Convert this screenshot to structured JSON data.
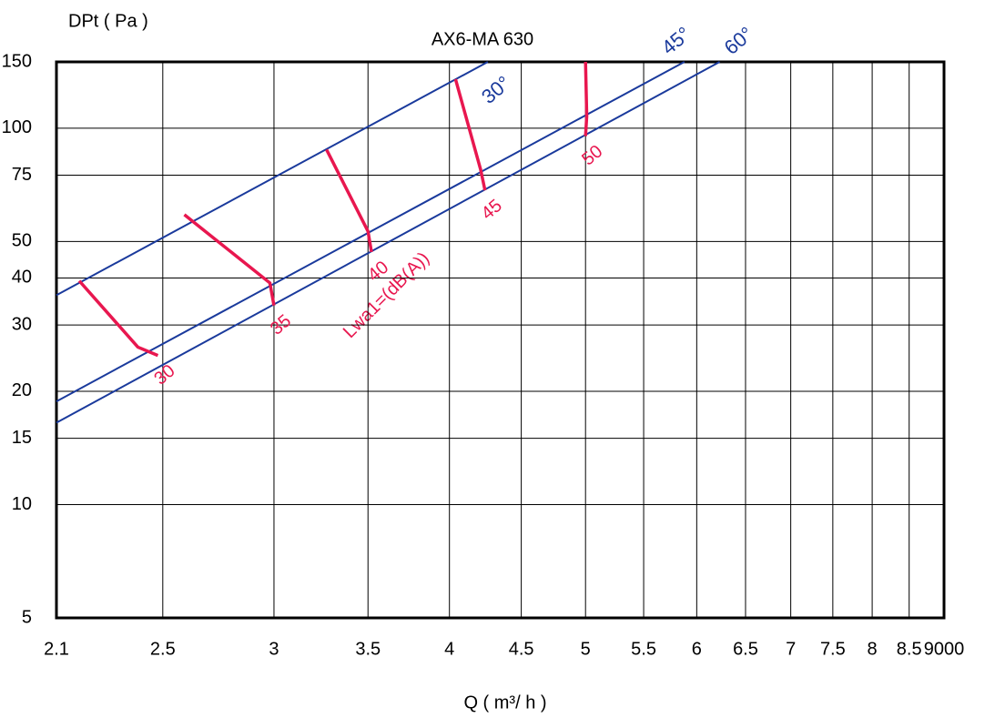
{
  "chart_data": {
    "type": "line",
    "title": "AX6-MA 630",
    "x_label": "Q ( m³/ h )",
    "y_label": "DPt ( Pa )",
    "annotation": "Lwa1=(dB(A))",
    "x_scale": "log",
    "y_scale": "log",
    "grid": true,
    "xlim": [
      2.1,
      9
    ],
    "ylim": [
      5,
      150
    ],
    "xticks": [
      2.1,
      2.5,
      3,
      3.5,
      4,
      4.5,
      5,
      5.5,
      6,
      6.5,
      7,
      7.5,
      8,
      8.5,
      {
        "value": 9,
        "label": "9000"
      }
    ],
    "yticks": [
      5,
      10,
      15,
      20,
      30,
      40,
      50,
      75,
      100,
      150
    ],
    "series": [
      {
        "name": "30°",
        "color": "#1a3a9c",
        "x": [
          2.1,
          4.26
        ],
        "values": [
          36,
          150
        ]
      },
      {
        "name": "45°",
        "color": "#1a3a9c",
        "x": [
          2.1,
          5.88
        ],
        "values": [
          18.8,
          150
        ]
      },
      {
        "name": "60°",
        "color": "#1a3a9c",
        "x": [
          2.1,
          6.23
        ],
        "values": [
          16.5,
          150
        ]
      },
      {
        "name": "30",
        "color": "#e8174f",
        "x": [
          2.18,
          2.4,
          2.48
        ],
        "values": [
          39.3,
          26.2,
          24.9
        ]
      },
      {
        "name": "35",
        "color": "#e8174f",
        "x": [
          2.59,
          2.98,
          3.0
        ],
        "values": [
          58.9,
          38.8,
          33.8
        ]
      },
      {
        "name": "40",
        "color": "#e8174f",
        "x": [
          3.27,
          3.5,
          3.52
        ],
        "values": [
          87.7,
          53.2,
          46.9
        ]
      },
      {
        "name": "45",
        "color": "#e8174f",
        "x": [
          4.04,
          4.21,
          4.24
        ],
        "values": [
          135,
          77.6,
          68.4
        ]
      },
      {
        "name": "50",
        "color": "#e8174f",
        "x": [
          5.0,
          5.01,
          5.0
        ],
        "values": [
          150,
          107.6,
          95.3
        ]
      }
    ]
  }
}
